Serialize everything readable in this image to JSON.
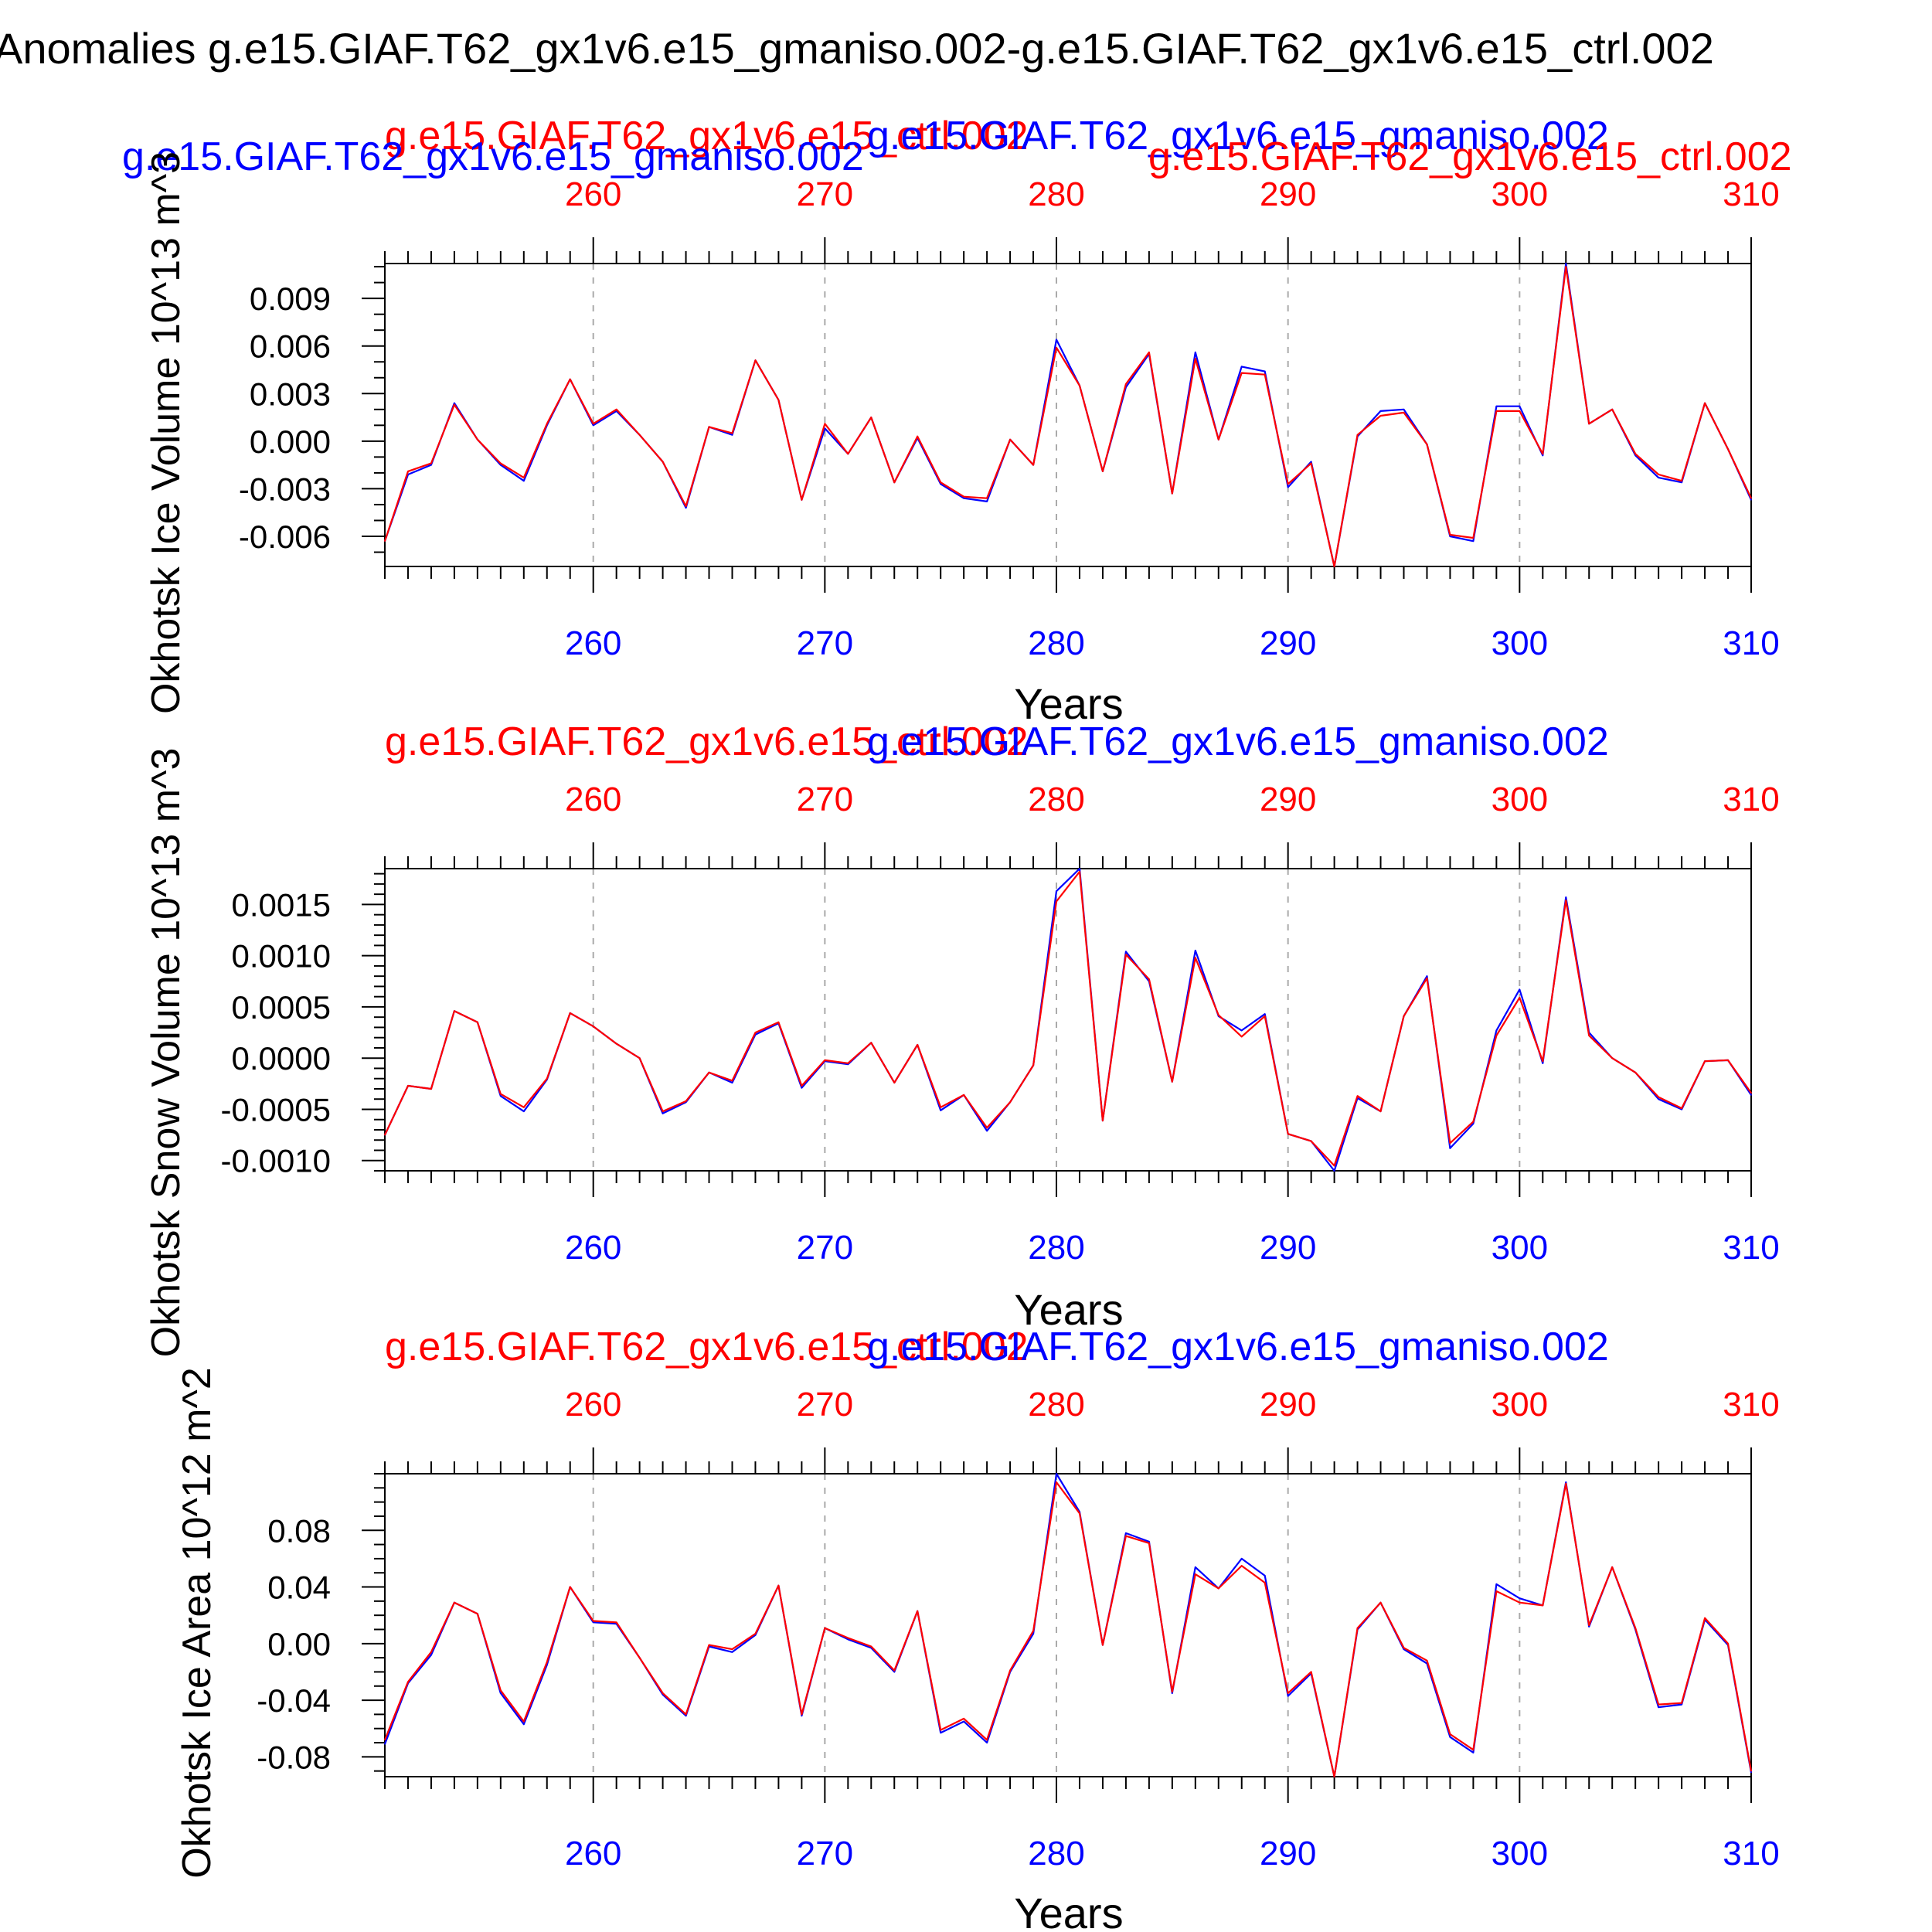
{
  "figure": {
    "title": "Anomalies g.e15.GIAF.T62_gx1v6.e15_gmaniso.002-g.e15.GIAF.T62_gx1v6.e15_ctrl.002"
  },
  "colors": {
    "exp": "#0000ff",
    "ctrl": "#ff0000",
    "axis": "#000000",
    "grid": "#aaaaaa"
  },
  "chart_data": [
    {
      "type": "line",
      "ylabel": "Okhotsk Ice Volume 10^13 m^3",
      "xlabel": "Years",
      "legend_top": {
        "red": "g.e15.GIAF.T62_gx1v6.e15_ctrl.002",
        "blue": "g.e15.GIAF.T62_gx1v6.e15_gmaniso.002"
      },
      "legend_second": {
        "red": "g.e15.GIAF.T62_gx1v6.e15_ctrl.002",
        "blue": "g.e15.GIAF.T62_gx1v6.e15_gmaniso.002"
      },
      "xlim": [
        251,
        310
      ],
      "ylim": [
        -0.0079,
        0.0112
      ],
      "xticks": [
        260,
        270,
        280,
        290,
        300,
        310
      ],
      "yticks": [
        -0.006,
        -0.003,
        0.0,
        0.003,
        0.006,
        0.009
      ],
      "ytick_labels": [
        "-0.006",
        "-0.003",
        "0.000",
        "0.003",
        "0.006",
        "0.009"
      ],
      "ytick_minor_step": 0.001,
      "grid": "x dashed",
      "x": [
        251,
        252,
        253,
        254,
        255,
        256,
        257,
        258,
        259,
        260,
        261,
        262,
        263,
        264,
        265,
        266,
        267,
        268,
        269,
        270,
        271,
        272,
        273,
        274,
        275,
        276,
        277,
        278,
        279,
        280,
        281,
        282,
        283,
        284,
        285,
        286,
        287,
        288,
        289,
        290,
        291,
        292,
        293,
        294,
        295,
        296,
        297,
        298,
        299,
        300,
        301,
        302,
        303,
        304,
        305,
        306,
        307,
        308,
        309,
        310
      ],
      "series": [
        {
          "name": "g.e15.GIAF.T62_gx1v6.e15_gmaniso.002",
          "color": "blue",
          "values": [
            -0.0063,
            -0.0021,
            -0.0015,
            0.0024,
            0.0001,
            -0.0015,
            -0.0025,
            0.001,
            0.0039,
            0.001,
            0.0019,
            0.0004,
            -0.0013,
            -0.0042,
            0.0009,
            0.0004,
            0.0051,
            0.0026,
            -0.0037,
            0.0008,
            -0.0008,
            0.0015,
            -0.0026,
            0.0002,
            -0.0027,
            -0.0036,
            -0.0038,
            0.0001,
            -0.0015,
            0.0064,
            0.0035,
            -0.0019,
            0.0034,
            0.0055,
            -0.0033,
            0.0056,
            0.0001,
            0.0047,
            0.0044,
            -0.0029,
            -0.0013,
            -0.0079,
            0.0003,
            0.0019,
            0.002,
            -0.0002,
            -0.006,
            -0.0063,
            0.0022,
            0.0022,
            -0.0009,
            0.0112,
            0.0011,
            0.002,
            -0.0009,
            -0.0023,
            -0.0026,
            0.0024,
            -0.0005,
            -0.0037
          ]
        },
        {
          "name": "g.e15.GIAF.T62_gx1v6.e15_ctrl.002",
          "color": "red",
          "values": [
            -0.0063,
            -0.0019,
            -0.0014,
            0.0023,
            0.0001,
            -0.0014,
            -0.0023,
            0.0011,
            0.0039,
            0.0011,
            0.002,
            0.0004,
            -0.0013,
            -0.0041,
            0.0009,
            0.0005,
            0.0051,
            0.0026,
            -0.0037,
            0.0011,
            -0.0008,
            0.0015,
            -0.0026,
            0.0003,
            -0.0026,
            -0.0035,
            -0.0036,
            0.0001,
            -0.0015,
            0.0059,
            0.0035,
            -0.0019,
            0.0036,
            0.0056,
            -0.0033,
            0.0052,
            0.0001,
            0.0043,
            0.0042,
            -0.0027,
            -0.0014,
            -0.0079,
            0.0004,
            0.0016,
            0.0018,
            -0.0002,
            -0.0059,
            -0.0061,
            0.0019,
            0.0019,
            -0.0008,
            0.011,
            0.0011,
            0.002,
            -0.0008,
            -0.0021,
            -0.0025,
            0.0024,
            -0.0005,
            -0.0036
          ]
        }
      ]
    },
    {
      "type": "line",
      "ylabel": "Okhotsk Snow Volume 10^13 m^3",
      "xlabel": "Years",
      "legend_top": {
        "red": "g.e15.GIAF.T62_gx1v6.e15_ctrl.002",
        "blue": "g.e15.GIAF.T62_gx1v6.e15_gmaniso.002"
      },
      "xlim": [
        251,
        310
      ],
      "ylim": [
        -0.0011,
        0.00185
      ],
      "xticks": [
        260,
        270,
        280,
        290,
        300,
        310
      ],
      "yticks": [
        -0.001,
        -0.0005,
        0.0,
        0.0005,
        0.001,
        0.0015
      ],
      "ytick_labels": [
        "-0.0010",
        "-0.0005",
        "0.0000",
        "0.0005",
        "0.0010",
        "0.0015"
      ],
      "ytick_minor_step": 0.0001,
      "grid": "x dashed",
      "x": [
        251,
        252,
        253,
        254,
        255,
        256,
        257,
        258,
        259,
        260,
        261,
        262,
        263,
        264,
        265,
        266,
        267,
        268,
        269,
        270,
        271,
        272,
        273,
        274,
        275,
        276,
        277,
        278,
        279,
        280,
        281,
        282,
        283,
        284,
        285,
        286,
        287,
        288,
        289,
        290,
        291,
        292,
        293,
        294,
        295,
        296,
        297,
        298,
        299,
        300,
        301,
        302,
        303,
        304,
        305,
        306,
        307,
        308,
        309,
        310
      ],
      "series": [
        {
          "name": "g.e15.GIAF.T62_gx1v6.e15_gmaniso.002",
          "color": "blue",
          "values": [
            -0.00075,
            -0.00027,
            -0.0003,
            0.00046,
            0.00035,
            -0.00037,
            -0.00052,
            -0.00021,
            0.00044,
            0.00031,
            0.00014,
            0.0,
            -0.00054,
            -0.00043,
            -0.00014,
            -0.00024,
            0.00023,
            0.00034,
            -0.00029,
            -3e-05,
            -6e-05,
            0.00015,
            -0.00024,
            0.00013,
            -0.00051,
            -0.00036,
            -0.00071,
            -0.00043,
            -7e-05,
            0.00163,
            0.00185,
            -0.00061,
            0.00104,
            0.00075,
            -0.00023,
            0.00105,
            0.00041,
            0.00027,
            0.00043,
            -0.00074,
            -0.00081,
            -0.0011,
            -0.00039,
            -0.00052,
            0.00041,
            0.0008,
            -0.00088,
            -0.00064,
            0.00027,
            0.00067,
            -5e-05,
            0.00157,
            0.00025,
            0.0,
            -0.00014,
            -0.0004,
            -0.0005,
            -3e-05,
            -2e-05,
            -0.00036
          ]
        },
        {
          "name": "g.e15.GIAF.T62_gx1v6.e15_ctrl.002",
          "color": "red",
          "values": [
            -0.00075,
            -0.00027,
            -0.0003,
            0.00046,
            0.00035,
            -0.00035,
            -0.00048,
            -0.0002,
            0.00044,
            0.00031,
            0.00014,
            0.0,
            -0.00052,
            -0.00042,
            -0.00014,
            -0.00022,
            0.00025,
            0.00035,
            -0.00027,
            -2e-05,
            -5e-05,
            0.00015,
            -0.00024,
            0.00013,
            -0.00048,
            -0.00036,
            -0.00068,
            -0.00043,
            -7e-05,
            0.00153,
            0.00182,
            -0.00061,
            0.00101,
            0.00077,
            -0.00023,
            0.00098,
            0.00042,
            0.00021,
            0.00041,
            -0.00074,
            -0.00081,
            -0.00105,
            -0.00037,
            -0.00052,
            0.00041,
            0.00078,
            -0.00083,
            -0.00062,
            0.00022,
            0.00059,
            -3e-05,
            0.00154,
            0.00022,
            0.0,
            -0.00014,
            -0.00038,
            -0.00049,
            -3e-05,
            -2e-05,
            -0.00034
          ]
        }
      ]
    },
    {
      "type": "line",
      "ylabel": "Okhotsk Ice Area 10^12 m^2",
      "xlabel": "Years",
      "legend_top": {
        "red": "g.e15.GIAF.T62_gx1v6.e15_ctrl.002",
        "blue": "g.e15.GIAF.T62_gx1v6.e15_gmaniso.002"
      },
      "xlim": [
        251,
        310
      ],
      "ylim": [
        -0.094,
        0.12
      ],
      "xticks": [
        260,
        270,
        280,
        290,
        300,
        310
      ],
      "yticks": [
        -0.08,
        -0.04,
        0.0,
        0.04,
        0.08
      ],
      "ytick_labels": [
        "-0.08",
        "-0.04",
        "0.00",
        "0.04",
        "0.08"
      ],
      "ytick_minor_step": 0.01,
      "grid": "x dashed",
      "x": [
        251,
        252,
        253,
        254,
        255,
        256,
        257,
        258,
        259,
        260,
        261,
        262,
        263,
        264,
        265,
        266,
        267,
        268,
        269,
        270,
        271,
        272,
        273,
        274,
        275,
        276,
        277,
        278,
        279,
        280,
        281,
        282,
        283,
        284,
        285,
        286,
        287,
        288,
        289,
        290,
        291,
        292,
        293,
        294,
        295,
        296,
        297,
        298,
        299,
        300,
        301,
        302,
        303,
        304,
        305,
        306,
        307,
        308,
        309,
        310
      ],
      "series": [
        {
          "name": "g.e15.GIAF.T62_gx1v6.e15_gmaniso.002",
          "color": "blue",
          "values": [
            -0.071,
            -0.028,
            -0.008,
            0.029,
            0.021,
            -0.035,
            -0.057,
            -0.015,
            0.04,
            0.015,
            0.014,
            -0.01,
            -0.036,
            -0.051,
            -0.002,
            -0.006,
            0.006,
            0.041,
            -0.051,
            0.011,
            0.003,
            -0.003,
            -0.02,
            0.023,
            -0.063,
            -0.055,
            -0.07,
            -0.02,
            0.007,
            0.12,
            0.093,
            -0.001,
            0.078,
            0.072,
            -0.035,
            0.054,
            0.039,
            0.06,
            0.048,
            -0.037,
            -0.021,
            -0.094,
            0.01,
            0.029,
            -0.004,
            -0.014,
            -0.066,
            -0.077,
            0.042,
            0.032,
            0.027,
            0.114,
            0.012,
            0.054,
            0.01,
            -0.045,
            -0.043,
            0.017,
            -0.001,
            -0.091
          ]
        },
        {
          "name": "g.e15.GIAF.T62_gx1v6.e15_ctrl.002",
          "color": "red",
          "values": [
            -0.068,
            -0.027,
            -0.006,
            0.029,
            0.021,
            -0.033,
            -0.055,
            -0.013,
            0.04,
            0.016,
            0.015,
            -0.01,
            -0.035,
            -0.05,
            -0.001,
            -0.004,
            0.007,
            0.041,
            -0.05,
            0.011,
            0.004,
            -0.002,
            -0.019,
            0.023,
            -0.061,
            -0.053,
            -0.068,
            -0.019,
            0.009,
            0.114,
            0.092,
            -0.001,
            0.076,
            0.071,
            -0.034,
            0.049,
            0.039,
            0.055,
            0.043,
            -0.035,
            -0.02,
            -0.094,
            0.011,
            0.029,
            -0.003,
            -0.012,
            -0.064,
            -0.075,
            0.037,
            0.029,
            0.027,
            0.113,
            0.013,
            0.054,
            0.011,
            -0.043,
            -0.042,
            0.018,
            0.0,
            -0.09
          ]
        }
      ]
    }
  ]
}
